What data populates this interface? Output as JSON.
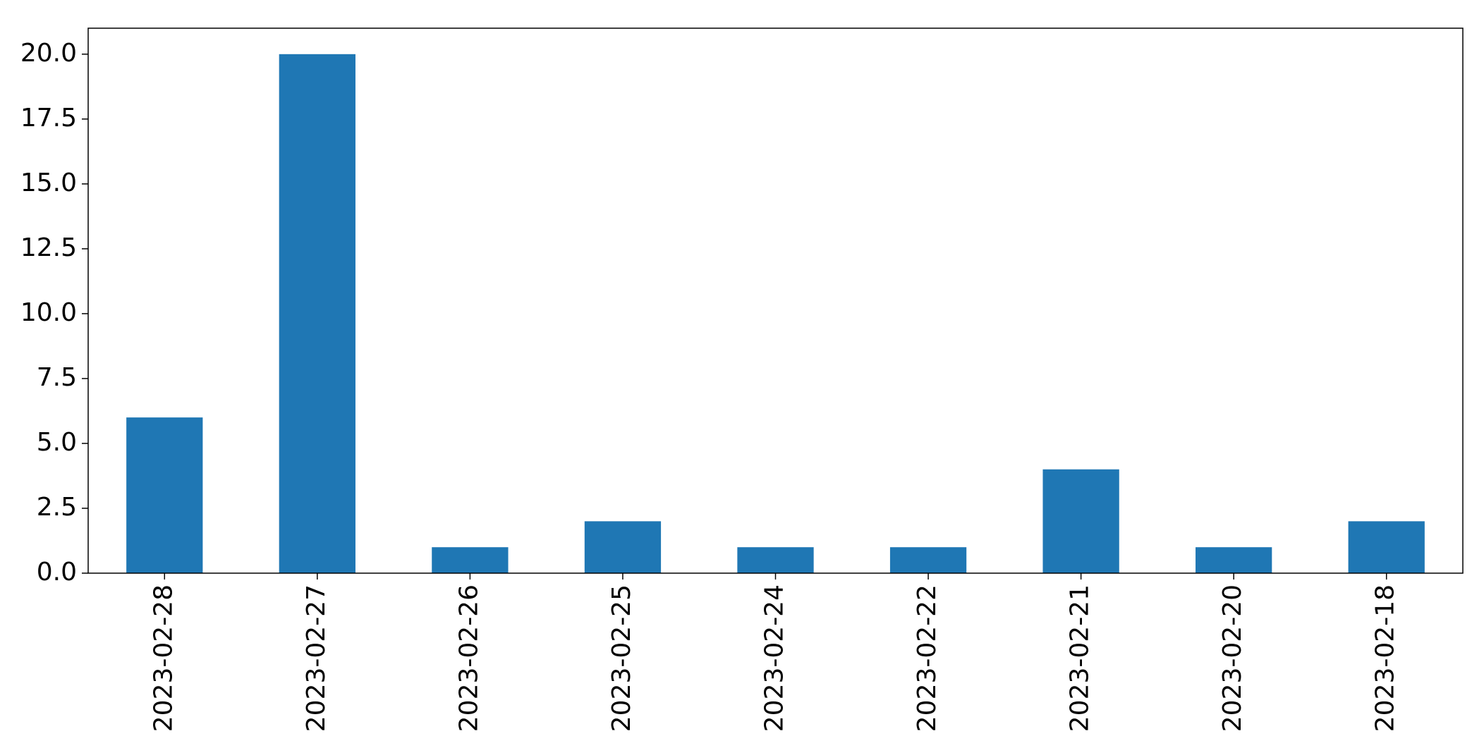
{
  "chart_data": {
    "type": "bar",
    "categories": [
      "2023-02-28",
      "2023-02-27",
      "2023-02-26",
      "2023-02-25",
      "2023-02-24",
      "2023-02-22",
      "2023-02-21",
      "2023-02-20",
      "2023-02-18"
    ],
    "values": [
      6,
      20,
      1,
      2,
      1,
      1,
      4,
      1,
      2
    ],
    "color": "#1f77b4",
    "ylim": [
      0,
      21
    ],
    "yticks": [
      {
        "value": 0,
        "label": "0.0"
      },
      2.5,
      {
        "value": 5,
        "label": "5.0"
      },
      7.5,
      {
        "value": 10,
        "label": "10.0"
      },
      12.5,
      {
        "value": 15,
        "label": "15.0"
      },
      17.5,
      {
        "value": 20,
        "label": "20.0"
      }
    ],
    "grid": false
  }
}
